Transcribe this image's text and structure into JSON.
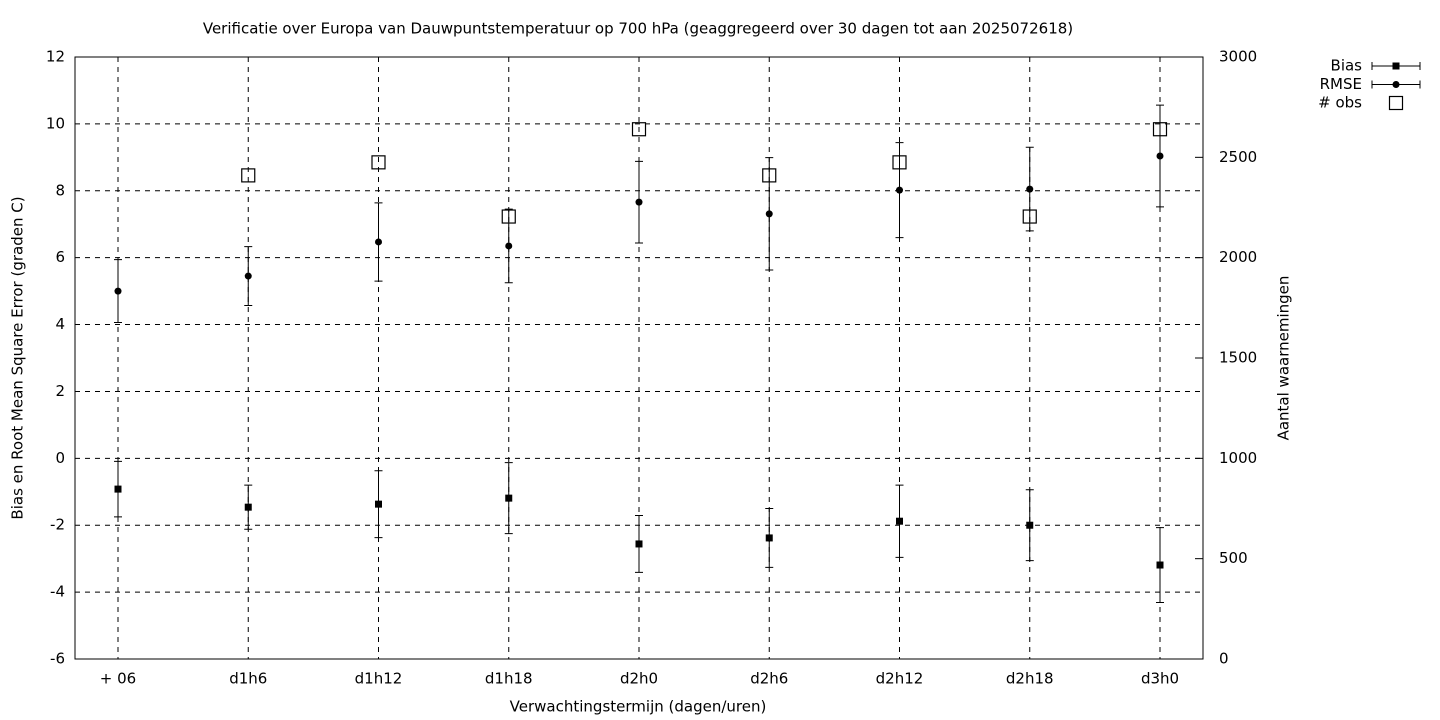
{
  "chart_data": {
    "type": "errorbar",
    "title": "Verificatie over Europa van Dauwpuntstemperatuur op 700 hPa (geaggregeerd over 30 dagen tot aan 2025072618)",
    "x_label": "Verwachtingstermijn (dagen/uren)",
    "y_label": "Bias en Root Mean Square Error (graden C)",
    "y2_label": "Aantal waarnemingen",
    "categories": [
      "+ 06",
      "d1h6",
      "d1h12",
      "d1h18",
      "d2h0",
      "d2h6",
      "d2h12",
      "d2h18",
      "d3h0"
    ],
    "ylim": [
      -6,
      12
    ],
    "yticks": [
      -6,
      -4,
      -2,
      0,
      2,
      4,
      6,
      8,
      10,
      12
    ],
    "y2lim": [
      0,
      3000
    ],
    "y2ticks": [
      0,
      500,
      1000,
      1500,
      2000,
      2500,
      3000
    ],
    "grid": true,
    "legend": "top-right",
    "series": [
      {
        "name": "Bias",
        "color": "#000000",
        "marker": "square",
        "values": [
          -0.92,
          -1.46,
          -1.37,
          -1.19,
          -2.56,
          -2.38,
          -1.88,
          -2.0,
          -3.19
        ],
        "errors": [
          0.83,
          0.66,
          1.0,
          1.06,
          0.85,
          0.88,
          1.08,
          1.06,
          1.12
        ]
      },
      {
        "name": "RMSE",
        "color": "#000000",
        "marker": "circle",
        "values": [
          5.0,
          5.45,
          6.47,
          6.35,
          7.66,
          7.31,
          8.02,
          8.05,
          9.04
        ],
        "errors": [
          0.94,
          0.88,
          1.17,
          1.1,
          1.22,
          1.68,
          1.42,
          1.25,
          1.52
        ]
      },
      {
        "name": "# obs",
        "color": "#000000",
        "marker": "open-square",
        "axis": "y2",
        "values": [
          null,
          2410,
          2475,
          2205,
          2640,
          2410,
          2475,
          2205,
          2640
        ]
      }
    ]
  }
}
